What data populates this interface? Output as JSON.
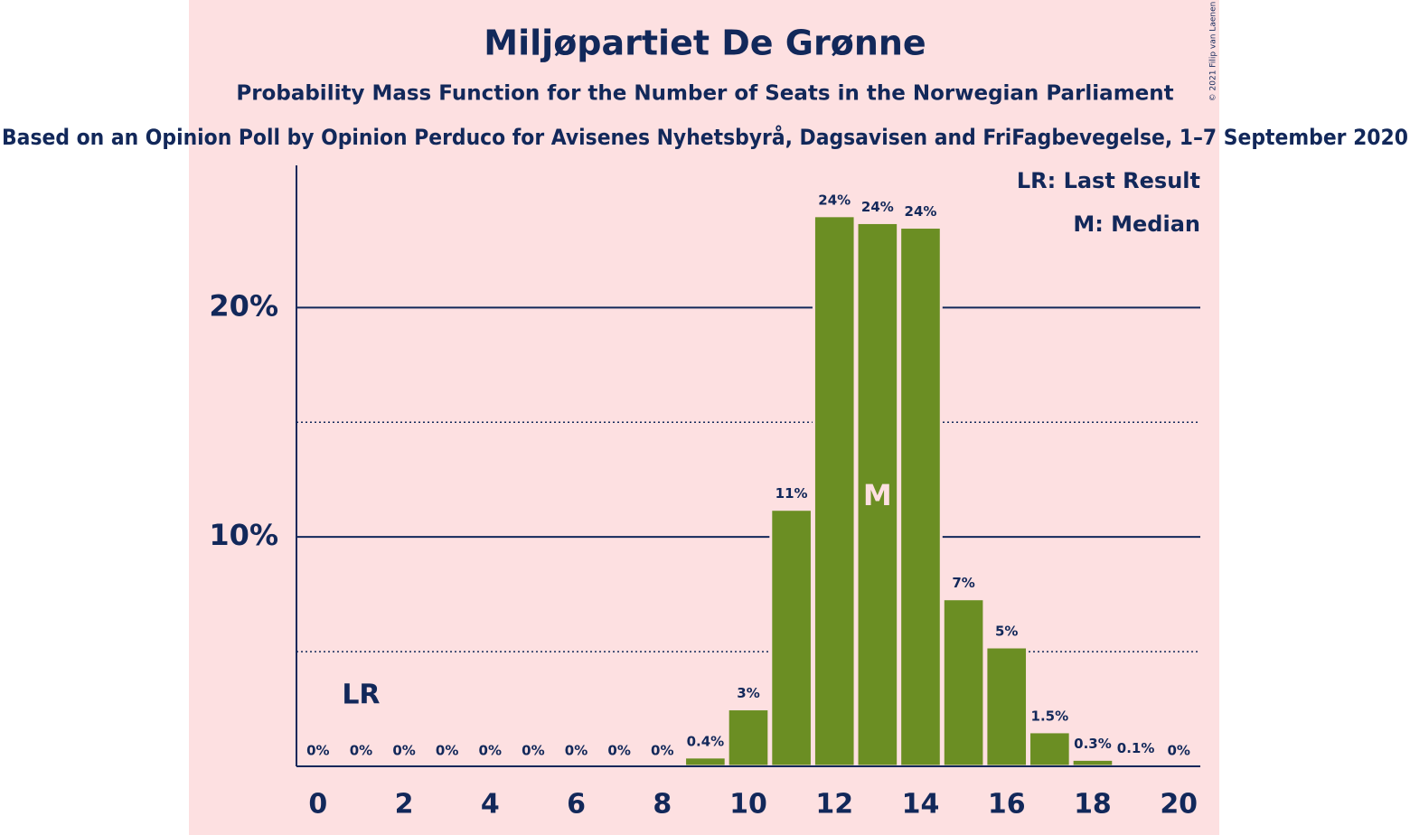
{
  "chart_data": {
    "type": "bar",
    "title": "Miljøpartiet De Grønne",
    "subtitle": "Probability Mass Function for the Number of Seats in the Norwegian Parliament",
    "description": "Based on an Opinion Poll by Opinion Perduco for Avisenes Nyhetsbyrå, Dagsavisen and FriFagbevegelse, 1–7 September 2020",
    "copyright": "© 2021 Filip van Laenen",
    "legend": [
      "LR: Last Result",
      "M: Median"
    ],
    "legend_position": "top-right",
    "x": [
      0,
      1,
      2,
      3,
      4,
      5,
      6,
      7,
      8,
      9,
      10,
      11,
      12,
      13,
      14,
      15,
      16,
      17,
      18,
      19,
      20
    ],
    "values": [
      0,
      0,
      0,
      0,
      0,
      0,
      0,
      0,
      0,
      0.4,
      2.5,
      11.2,
      24.0,
      23.7,
      23.5,
      7.3,
      5.2,
      1.5,
      0.3,
      0.1,
      0
    ],
    "value_labels": [
      "0%",
      "0%",
      "0%",
      "0%",
      "0%",
      "0%",
      "0%",
      "0%",
      "0%",
      "0.4%",
      "3%",
      "11%",
      "24%",
      "24%",
      "24%",
      "7%",
      "5%",
      "1.5%",
      "0.3%",
      "0.1%",
      "0%"
    ],
    "color": "#6b8e23",
    "xlim": [
      -0.5,
      20.5
    ],
    "xticks": [
      0,
      2,
      4,
      6,
      8,
      10,
      12,
      14,
      16,
      18,
      20
    ],
    "ylim": [
      0,
      26.2
    ],
    "yticks": [
      {
        "value": 10,
        "label": "10%"
      },
      {
        "value": 20,
        "label": "20%"
      }
    ],
    "minor_gridlines": [
      5,
      15
    ],
    "grid": true,
    "annotations": [
      {
        "text": "LR",
        "x": 1
      },
      {
        "text": "M",
        "x": 13
      }
    ]
  }
}
